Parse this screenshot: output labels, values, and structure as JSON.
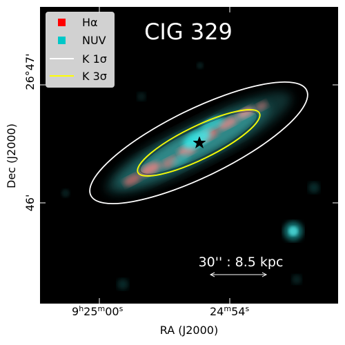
{
  "title": "CIG 329",
  "legend": {
    "items": [
      {
        "label": "Hα",
        "type": "square",
        "color": "#ff0000"
      },
      {
        "label": "NUV",
        "type": "square",
        "color": "#00c8c8"
      },
      {
        "label": "K 1σ",
        "type": "line",
        "color": "#ffffff"
      },
      {
        "label": "K 3σ",
        "type": "line",
        "color": "#ffff00"
      }
    ]
  },
  "scalebar": {
    "label": "30'' : 8.5 kpc"
  },
  "axes": {
    "xlabel": "RA (J2000)",
    "ylabel": "Dec (J2000)",
    "xticks": [
      {
        "label": "9h25m00s"
      },
      {
        "label": "24m54s"
      }
    ],
    "yticks": [
      {
        "label": "26°47'"
      },
      {
        "label": "46'"
      }
    ]
  },
  "colors": {
    "background": "#000000",
    "halpha": "#ff3030",
    "nuv": "#00e0e0",
    "contour1": "#ffffff",
    "contour3": "#ffff00"
  },
  "markers": {
    "center": "star-icon"
  }
}
